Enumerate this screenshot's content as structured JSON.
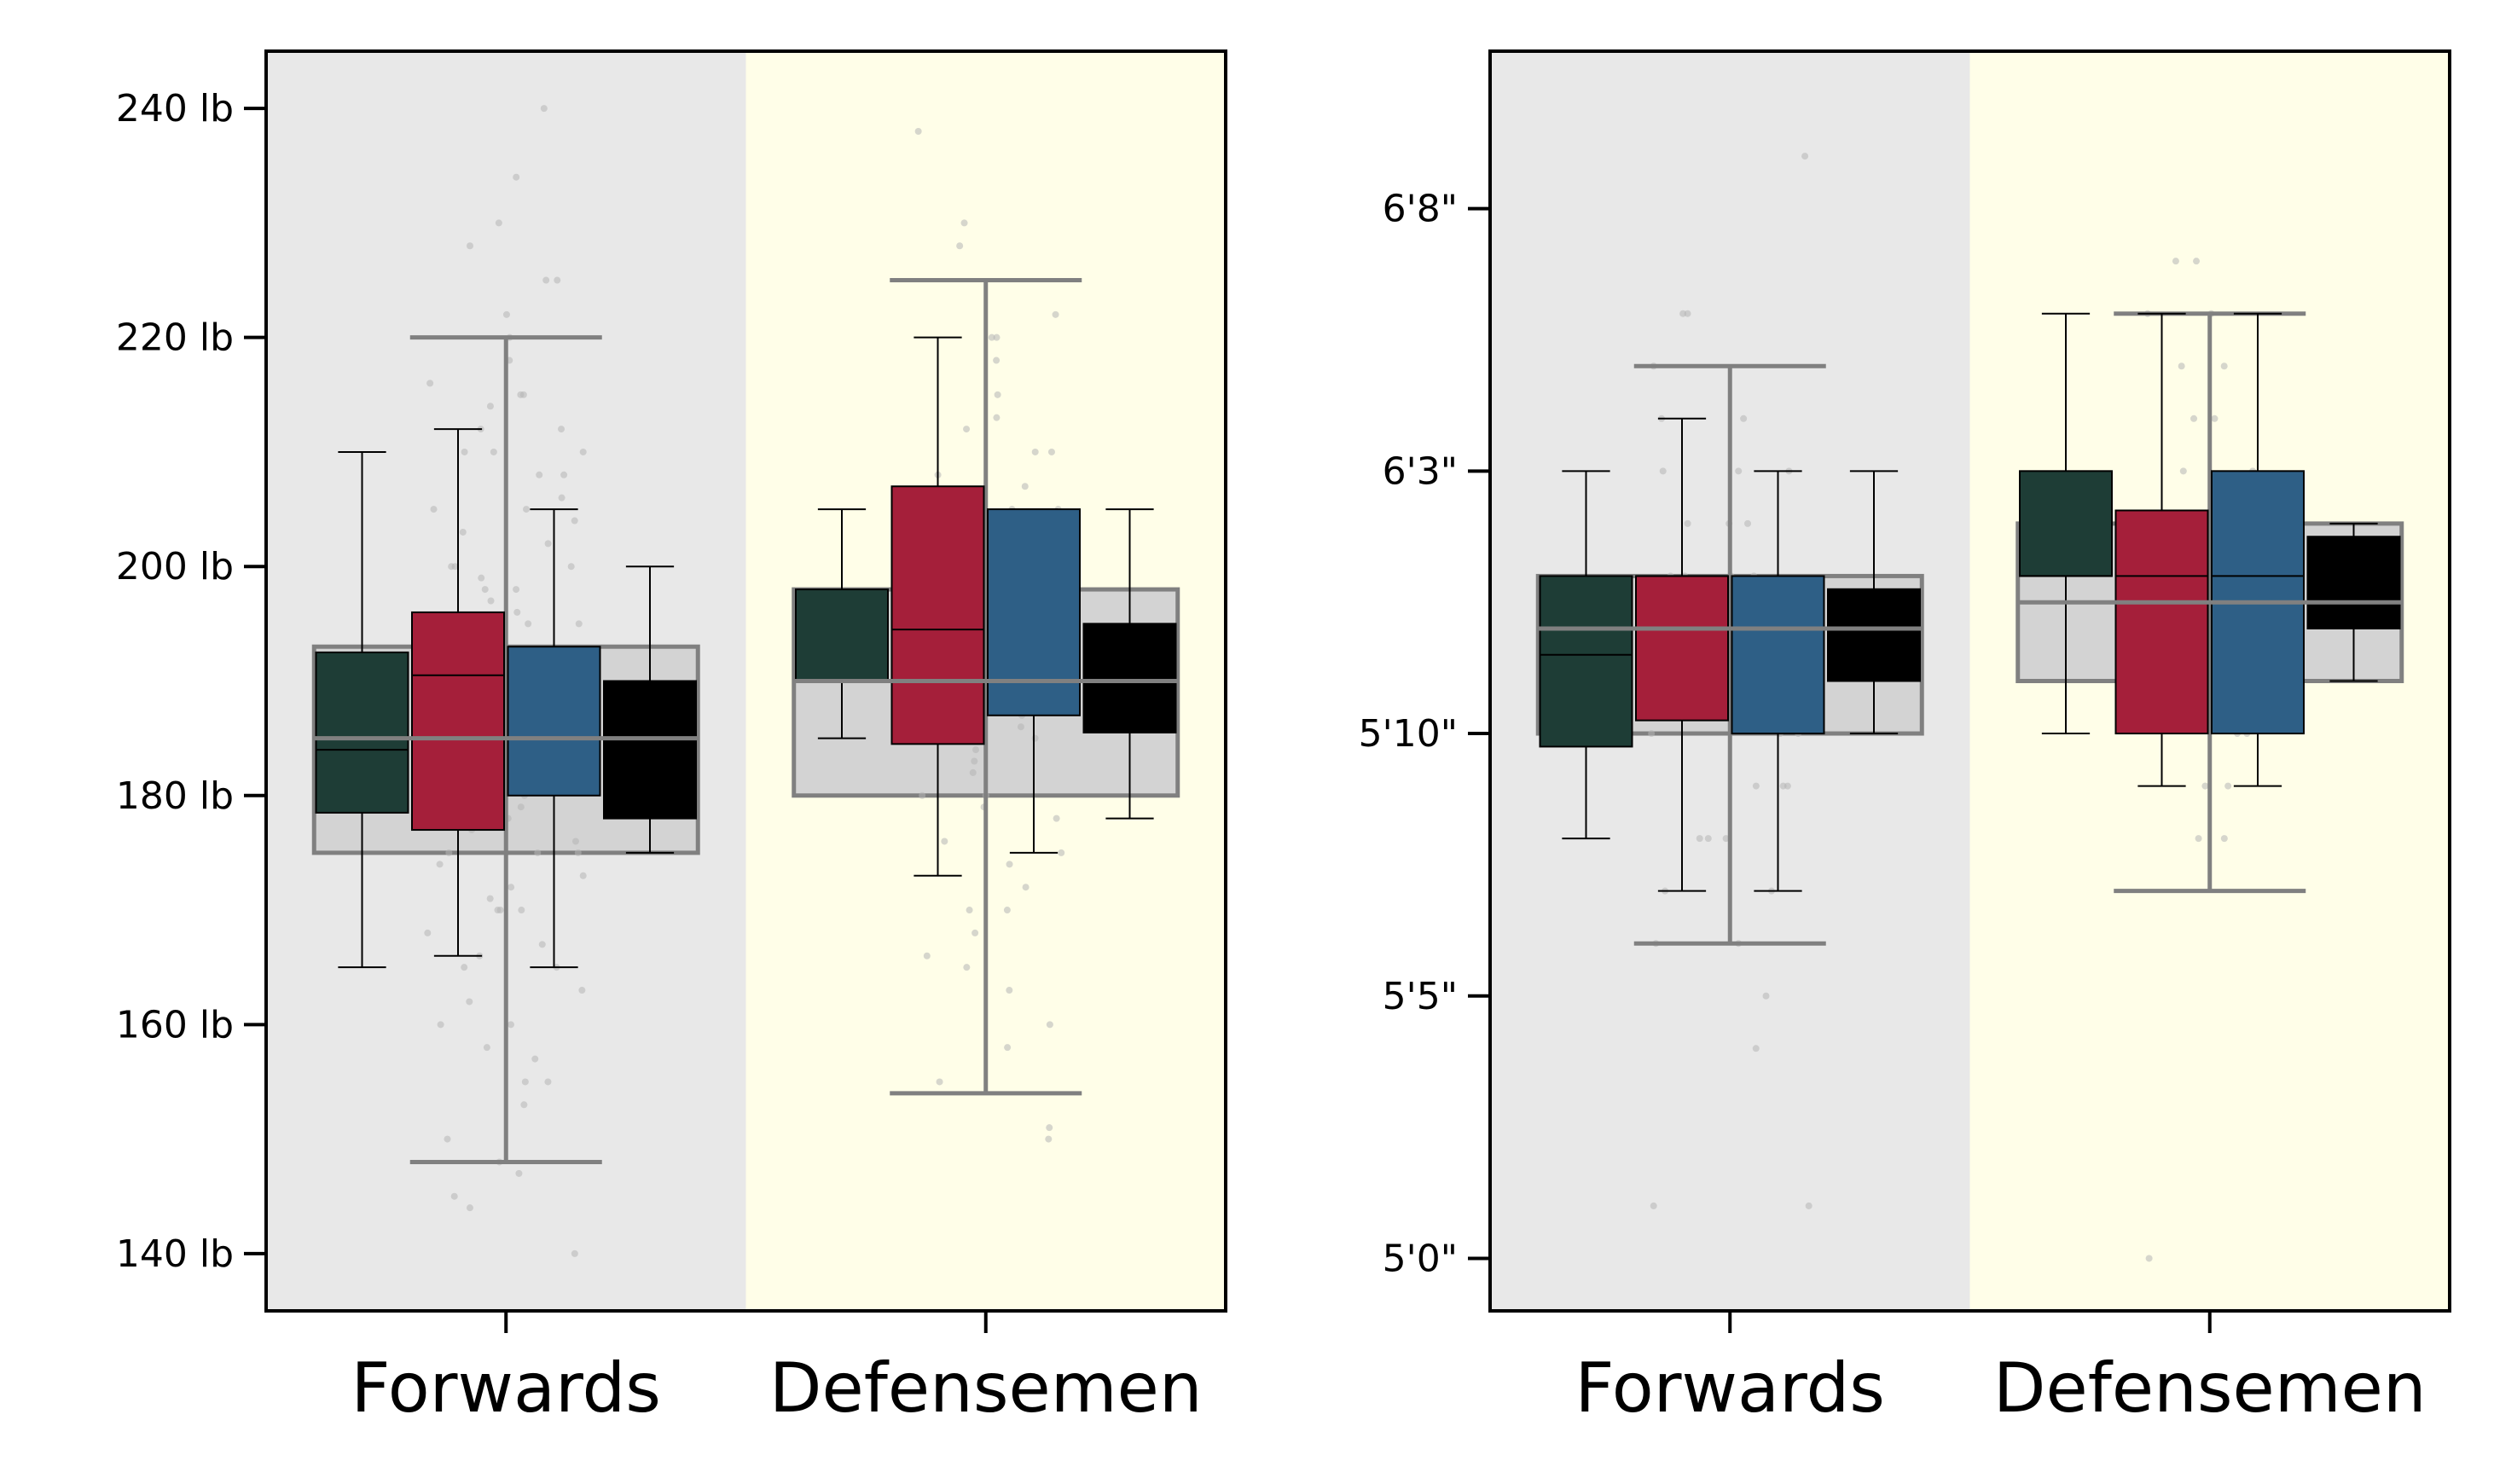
{
  "colors": {
    "forwards_band": "#e8e8e8",
    "defensemen_band": "#fffee8",
    "overall_box_fill": "#d3d3d3",
    "overall_box_edge": "#808080",
    "scatter": "#b5b5b5",
    "series_colors": [
      "#1e3d36",
      "#a51f3a",
      "#2e5f86",
      "#000000"
    ]
  },
  "chart_data": [
    {
      "type": "box",
      "categories": [
        "Forwards",
        "Defensemen"
      ],
      "ylim": [
        135,
        245
      ],
      "ytick_values": [
        140,
        160,
        180,
        200,
        220,
        240
      ],
      "ytick_labels": [
        "140 lb",
        "160 lb",
        "180 lb",
        "200 lb",
        "220 lb",
        "240 lb"
      ],
      "grid": false,
      "overall": [
        {
          "category": "Forwards",
          "whislo": 148,
          "q1": 175,
          "med": 185,
          "q3": 193,
          "whishi": 220
        },
        {
          "category": "Defensemen",
          "whislo": 154,
          "q1": 180,
          "med": 190,
          "q3": 198,
          "whishi": 225
        }
      ],
      "series": [
        {
          "boxes": [
            {
              "whislo": 165,
              "q1": 178.5,
              "med": 184,
              "q3": 192.5,
              "whishi": 210
            },
            {
              "whislo": 185,
              "q1": 190,
              "med": 190,
              "q3": 198,
              "whishi": 205
            }
          ]
        },
        {
          "boxes": [
            {
              "whislo": 166,
              "q1": 177,
              "med": 190.5,
              "q3": 196,
              "whishi": 212
            },
            {
              "whislo": 173,
              "q1": 184.5,
              "med": 194.5,
              "q3": 207,
              "whishi": 220
            }
          ]
        },
        {
          "boxes": [
            {
              "whislo": 165,
              "q1": 180,
              "med": 185,
              "q3": 193,
              "whishi": 205
            },
            {
              "whislo": 175,
              "q1": 187,
              "med": 190,
              "q3": 205,
              "whishi": 205
            }
          ]
        },
        {
          "boxes": [
            {
              "whislo": 175,
              "q1": 178,
              "med": 185,
              "q3": 190,
              "whishi": 200
            },
            {
              "whislo": 178,
              "q1": 185.5,
              "med": 190,
              "q3": 195,
              "whishi": 205
            }
          ]
        }
      ],
      "points": [
        {
          "category": "Forwards",
          "values": [
            240,
            234,
            230,
            228,
            225,
            225,
            222,
            220,
            218,
            216,
            215,
            215,
            214,
            212,
            212,
            210,
            210,
            210,
            208,
            208,
            206,
            205,
            205,
            204,
            203,
            202,
            200,
            200,
            200,
            199,
            198,
            198,
            197,
            196,
            195,
            195,
            195,
            194,
            193,
            192,
            191,
            190,
            190,
            190,
            189,
            188,
            187,
            186,
            185,
            185,
            185,
            184,
            183,
            182,
            181,
            180,
            180,
            180,
            179,
            178,
            177,
            176,
            175,
            175,
            175,
            174,
            173,
            172,
            171,
            170,
            170,
            170,
            168,
            167,
            166,
            165,
            165,
            163,
            162,
            160,
            160,
            158,
            157,
            155,
            155,
            153,
            150,
            148,
            147,
            145,
            144,
            140
          ]
        },
        {
          "category": "Defensemen",
          "values": [
            238,
            230,
            228,
            222,
            220,
            220,
            218,
            215,
            213,
            212,
            210,
            210,
            208,
            207,
            205,
            205,
            203,
            202,
            200,
            200,
            199,
            198,
            197,
            196,
            195,
            195,
            194,
            193,
            192,
            191,
            190,
            190,
            189,
            188,
            187,
            186,
            185,
            185,
            184,
            183,
            182,
            180,
            180,
            179,
            178,
            176,
            175,
            174,
            172,
            170,
            170,
            168,
            166,
            165,
            163,
            160,
            158,
            155,
            151,
            150
          ]
        }
      ]
    },
    {
      "type": "box",
      "categories": [
        "Forwards",
        "Defensemen"
      ],
      "ylim": [
        59,
        83
      ],
      "ytick_values": [
        60,
        65,
        70,
        75,
        80
      ],
      "ytick_labels": [
        "5'0\"",
        "5'5\"",
        "5'10\"",
        "6'3\"",
        "6'8\""
      ],
      "grid": false,
      "overall": [
        {
          "category": "Forwards",
          "whislo": 66,
          "q1": 70,
          "med": 72,
          "q3": 73,
          "whishi": 77
        },
        {
          "category": "Defensemen",
          "whislo": 67,
          "q1": 71,
          "med": 72.5,
          "q3": 74,
          "whishi": 78
        }
      ],
      "series": [
        {
          "boxes": [
            {
              "whislo": 68,
              "q1": 69.75,
              "med": 71.5,
              "q3": 73,
              "whishi": 75
            },
            {
              "whislo": 70,
              "q1": 73,
              "med": 73,
              "q3": 75,
              "whishi": 78
            }
          ]
        },
        {
          "boxes": [
            {
              "whislo": 67,
              "q1": 70.25,
              "med": 73,
              "q3": 73,
              "whishi": 76
            },
            {
              "whislo": 69,
              "q1": 70,
              "med": 73,
              "q3": 74.25,
              "whishi": 78
            }
          ]
        },
        {
          "boxes": [
            {
              "whislo": 67,
              "q1": 70,
              "med": 72,
              "q3": 73,
              "whishi": 75
            },
            {
              "whislo": 69,
              "q1": 70,
              "med": 73,
              "q3": 75,
              "whishi": 78
            }
          ]
        },
        {
          "boxes": [
            {
              "whislo": 70,
              "q1": 71,
              "med": 72,
              "q3": 72.75,
              "whishi": 75
            },
            {
              "whislo": 71,
              "q1": 72,
              "med": 72.5,
              "q3": 73.75,
              "whishi": 74
            }
          ]
        }
      ],
      "points": [
        {
          "category": "Forwards",
          "values": [
            81,
            78,
            78,
            77,
            76,
            76,
            75,
            75,
            75,
            74,
            74,
            74,
            73,
            73,
            73,
            73,
            72,
            72,
            72,
            72,
            71,
            71,
            71,
            71,
            70,
            70,
            70,
            69,
            69,
            69,
            68,
            68,
            68,
            67,
            67,
            66,
            66,
            65,
            64,
            61,
            61
          ]
        },
        {
          "category": "Defensemen",
          "values": [
            79,
            79,
            78,
            78,
            77,
            77,
            76,
            76,
            75,
            75,
            74,
            74,
            74,
            73,
            73,
            73,
            72,
            72,
            72,
            71,
            71,
            70,
            70,
            69,
            69,
            68,
            68,
            60
          ]
        }
      ]
    }
  ]
}
